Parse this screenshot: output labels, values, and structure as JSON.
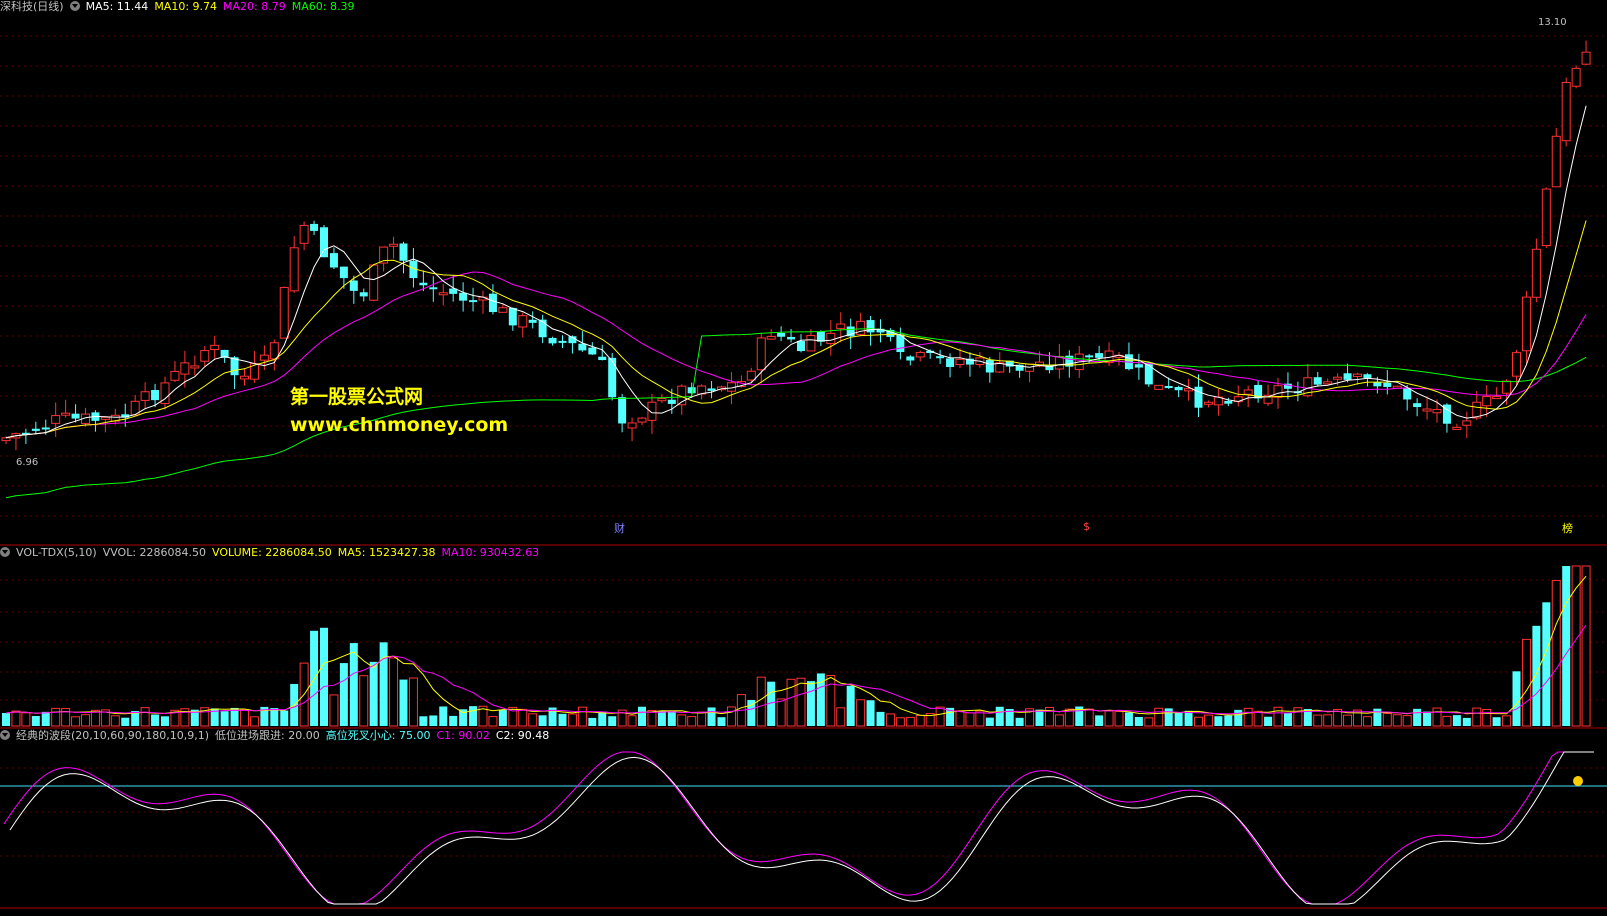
{
  "main": {
    "title": "深科技(日线)",
    "ma5": "MA5: 11.44",
    "ma10": "MA10: 9.74",
    "ma20": "MA20: 8.79",
    "ma60": "MA60: 8.39",
    "high_label": "13.10",
    "low_label": "6.96",
    "events": [
      "财",
      "$",
      "榜"
    ]
  },
  "watermark": {
    "line1": "第一股票公式网",
    "line2": "www.chnmoney.com"
  },
  "volume": {
    "title": "VOL-TDX(5,10)",
    "vvol": "VVOL: 2286084.50",
    "volume": "VOLUME: 2286084.50",
    "ma5": "MA5: 1523427.38",
    "ma10": "MA10: 930432.63"
  },
  "indicator": {
    "title": "经典的波段(20,10,60,90,180,10,9,1)",
    "low": "低位进场跟进: 20.00",
    "high": "高位死叉小心: 75.00",
    "c1": "C1: 90.02",
    "c2": "C2: 90.48"
  },
  "colors": {
    "up": "#ff3232",
    "down": "#54ffff",
    "ma5": "#ffffff",
    "ma10": "#ffff00",
    "ma20": "#ff00ff",
    "ma60": "#00ff00"
  }
}
